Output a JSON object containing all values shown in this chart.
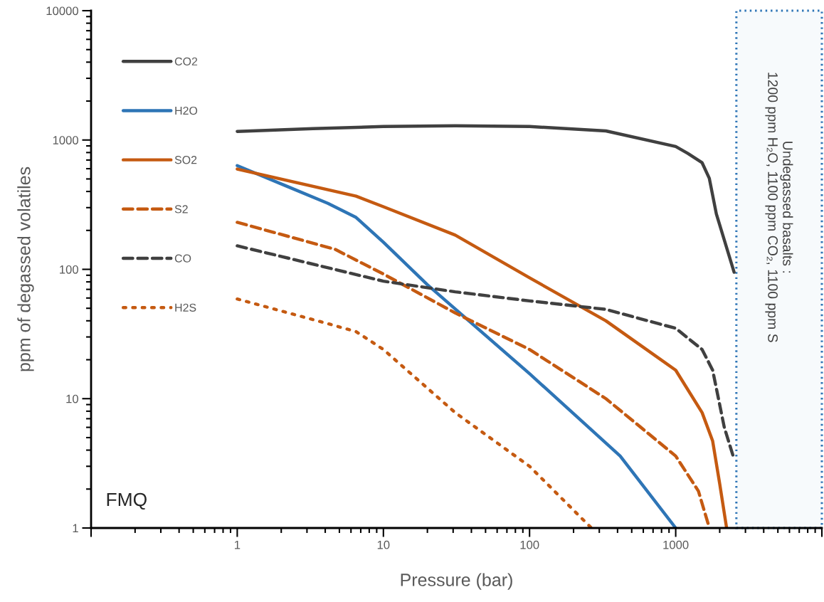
{
  "chart_data": {
    "type": "line",
    "xlabel": "Pressure (bar)",
    "ylabel": "ppm of degassed volatiles",
    "log": "xy",
    "xlim": [
      0.1,
      10000
    ],
    "ylim": [
      1,
      10000
    ],
    "xticks": [
      {
        "value": 0.1,
        "label": null
      },
      1,
      10,
      100,
      1000,
      {
        "value": 10000,
        "label": null
      }
    ],
    "yticks": [
      1,
      10,
      100,
      1000,
      10000
    ],
    "grid": false,
    "legend": "top left",
    "series": [
      {
        "name": "CO2",
        "color": "#404040",
        "line_style": "solid",
        "x": [
          1,
          3.3,
          10,
          31,
          100,
          333,
          1000,
          1211,
          1516,
          1698,
          1897,
          2510
        ],
        "values": [
          1164,
          1225,
          1271,
          1288,
          1271,
          1175,
          891,
          787,
          667,
          505,
          268,
          95
        ]
      },
      {
        "name": "H2O",
        "color": "#2e75b6",
        "line_style": "solid",
        "x": [
          1,
          2.12,
          4.17,
          6.5,
          10,
          20,
          100,
          417,
          1000
        ],
        "values": [
          634,
          445,
          324,
          252,
          162,
          76,
          15.6,
          3.6,
          1
        ]
      },
      {
        "name": "SO2",
        "color": "#c55a11",
        "line_style": "solid",
        "x": [
          1,
          6.5,
          10,
          31,
          100,
          333,
          1000,
          1516,
          1790,
          2000,
          2230
        ],
        "values": [
          596,
          368,
          305,
          184,
          86,
          40,
          16.6,
          7.8,
          4.7,
          2.2,
          1
        ]
      },
      {
        "name": "S2",
        "color": "#c55a11",
        "line_style": "dashed",
        "x": [
          1,
          4.66,
          10,
          31,
          100,
          333,
          1000,
          1430,
          1700
        ],
        "values": [
          231,
          143,
          92,
          46,
          24,
          10,
          3.6,
          1.93,
          1
        ]
      },
      {
        "name": "CO",
        "color": "#404040",
        "line_style": "dashed",
        "x": [
          1,
          10,
          31,
          100,
          333,
          1000,
          1516,
          1790,
          2150,
          2510
        ],
        "values": [
          152,
          81,
          67,
          57,
          49,
          35,
          24,
          16.6,
          6,
          3.4
        ]
      },
      {
        "name": "H2S",
        "color": "#c55a11",
        "line_style": "dotted",
        "x": [
          1,
          4.17,
          6.5,
          10,
          31,
          100,
          265
        ],
        "values": [
          59,
          38,
          33,
          24,
          7.8,
          3,
          1
        ]
      }
    ],
    "bands": [
      {
        "axis": "x",
        "from": 2600,
        "to": 10000,
        "label": "Undegassed basalts :\n1200 ppm H₂O, 1100 ppm CO₂, 1100 ppm S",
        "color": "#2e75b6"
      }
    ],
    "annotations": [
      "FMQ"
    ]
  }
}
